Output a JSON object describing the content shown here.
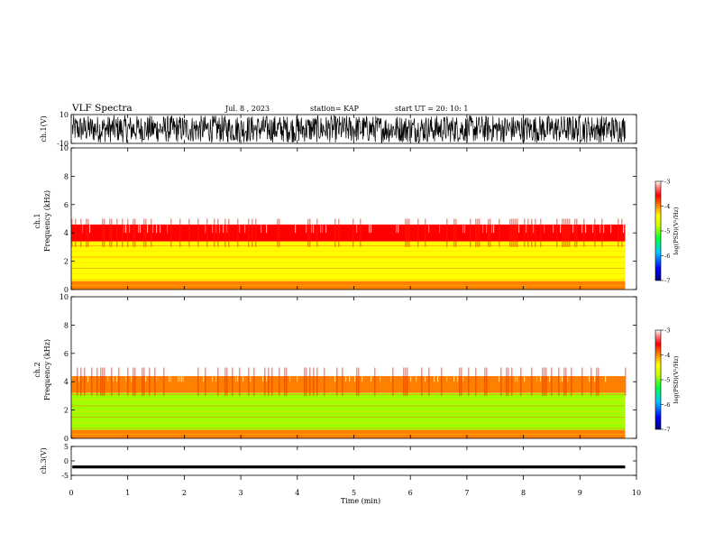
{
  "header": {
    "title": "VLF Spectra",
    "date": "Jul. 8 , 2023",
    "station": "station= KAP",
    "start": "start UT =  20: 10: 1"
  },
  "chart_data": [
    {
      "type": "line",
      "id": "ch1-waveform",
      "ylabel": "ch.1(V)",
      "ylim": [
        -10,
        10
      ],
      "yticks": [
        "10",
        "-10"
      ],
      "xlim": [
        0,
        10
      ],
      "note_series": "dense waveform filling most of the range around 0 V"
    },
    {
      "type": "heatmap",
      "id": "ch1-spectrogram",
      "ylabel": "ch.1\nFrequency (kHz)",
      "ylabel_lines": [
        "ch.1",
        "Frequency (kHz)"
      ],
      "ylim": [
        0,
        10
      ],
      "yticks": [
        "0",
        "2",
        "4",
        "6",
        "8",
        "10"
      ],
      "xlim": [
        0,
        10
      ],
      "data_extent_min": 9.8,
      "bands": [
        {
          "from_khz": 0.0,
          "to_khz": 0.6,
          "level": -4.6
        },
        {
          "from_khz": 0.6,
          "to_khz": 1.4,
          "level": -4.9
        },
        {
          "from_khz": 1.4,
          "to_khz": 3.4,
          "level": -4.8
        },
        {
          "from_khz": 3.4,
          "to_khz": 4.6,
          "level": -4.2
        },
        {
          "from_khz": 4.6,
          "to_khz": 10.0,
          "level": -3.4
        }
      ],
      "colorbar": {
        "label": "log(PSD)(V²/Hz)",
        "ticks": [
          "-3",
          "-4",
          "-5",
          "-6",
          "-7"
        ],
        "range": [
          -7,
          -3
        ]
      }
    },
    {
      "type": "heatmap",
      "id": "ch2-spectrogram",
      "ylabel": "ch.2\nFrequency (kHz)",
      "ylabel_lines": [
        "ch.2",
        "Frequency (kHz)"
      ],
      "ylim": [
        0,
        10
      ],
      "yticks": [
        "0",
        "2",
        "4",
        "6",
        "8",
        "10"
      ],
      "xlim": [
        0,
        10
      ],
      "data_extent_min": 9.8,
      "bands": [
        {
          "from_khz": 0.0,
          "to_khz": 0.6,
          "level": -4.4
        },
        {
          "from_khz": 0.6,
          "to_khz": 3.2,
          "level": -5.2
        },
        {
          "from_khz": 3.2,
          "to_khz": 4.4,
          "level": -4.3
        },
        {
          "from_khz": 4.4,
          "to_khz": 10.0,
          "level": -3.4
        }
      ],
      "colorbar": {
        "label": "log(PSD)(V²/Hz)",
        "ticks": [
          "-3",
          "-4",
          "-5",
          "-6",
          "-7"
        ],
        "range": [
          -7,
          -3
        ]
      }
    },
    {
      "type": "line",
      "id": "ch3-waveform",
      "ylabel": "ch.3(V)",
      "ylim": [
        -5,
        5
      ],
      "yticks": [
        "5",
        "0",
        "-5"
      ],
      "xlim": [
        0,
        10
      ],
      "xlabel": "Time (min)",
      "xticks": [
        "0",
        "1",
        "2",
        "3",
        "4",
        "5",
        "6",
        "7",
        "8",
        "9",
        "10"
      ],
      "note_series": "thin dense band near -2 V"
    }
  ],
  "colors": {
    "colormap": [
      "#000080",
      "#0000ff",
      "#00c0ff",
      "#00ff40",
      "#a0ff00",
      "#ffff00",
      "#ff8000",
      "#ff0000",
      "#ff6060",
      "#ffffff"
    ]
  }
}
